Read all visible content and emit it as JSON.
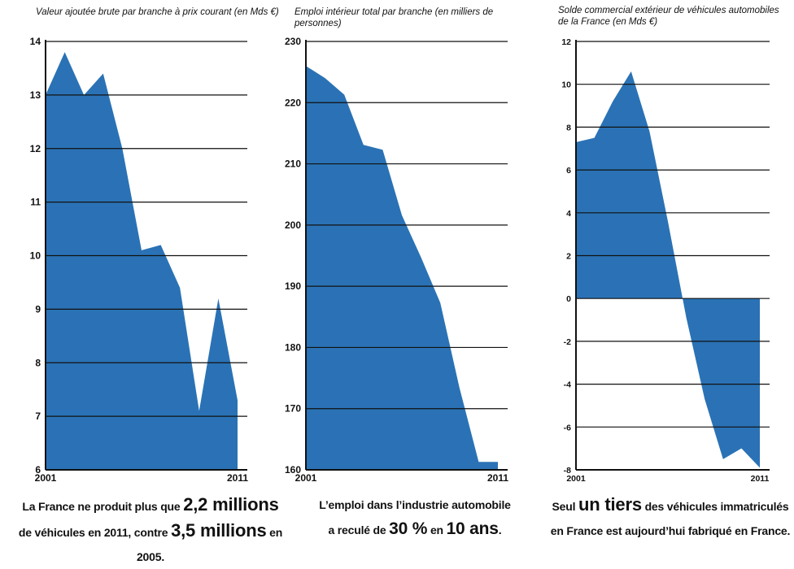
{
  "chart_data": [
    {
      "type": "area",
      "title": "Valeur ajoutée brute par branche à prix courant (en Mds €)",
      "x": [
        2001,
        2002,
        2003,
        2004,
        2005,
        2006,
        2007,
        2008,
        2009,
        2010,
        2011
      ],
      "values": [
        13.0,
        13.8,
        13.0,
        13.4,
        12.0,
        10.1,
        10.2,
        9.4,
        7.1,
        9.2,
        7.3
      ],
      "ylim": [
        6,
        14
      ],
      "yticks": [
        "6",
        "7",
        "8",
        "9",
        "10",
        "11",
        "12",
        "13",
        "14"
      ],
      "xtick_labels": [
        "2001",
        "2011"
      ],
      "color": "#2a72b5",
      "grid": true
    },
    {
      "type": "area",
      "title": "Emploi intérieur total par branche (en milliers de personnes)",
      "x": [
        2001,
        2002,
        2003,
        2004,
        2005,
        2006,
        2007,
        2008,
        2009,
        2010,
        2011
      ],
      "values": [
        226,
        224,
        221.3,
        213.1,
        212.3,
        201.6,
        194.7,
        187.3,
        173.4,
        161.3,
        161.3
      ],
      "ylim": [
        160,
        230
      ],
      "yticks": [
        "160",
        "170",
        "180",
        "190",
        "200",
        "210",
        "220",
        "230"
      ],
      "xtick_labels": [
        "2001",
        "2011"
      ],
      "color": "#2a72b5",
      "grid": true
    },
    {
      "type": "area",
      "title": "Solde commercial extérieur de véhicules automobiles de la France (en Mds €)",
      "x": [
        2001,
        2002,
        2003,
        2004,
        2005,
        2006,
        2007,
        2008,
        2009,
        2010,
        2011
      ],
      "values": [
        7.3,
        7.5,
        9.2,
        10.6,
        7.8,
        3.6,
        -0.9,
        -4.7,
        -7.5,
        -7.0,
        -7.9
      ],
      "ylim": [
        -8,
        12
      ],
      "yticks": [
        "-8",
        "-6",
        "-4",
        "-2",
        "0",
        "2",
        "4",
        "6",
        "8",
        "10",
        "12"
      ],
      "xtick_labels": [
        "2001",
        "2011"
      ],
      "color": "#2a72b5",
      "grid": true
    }
  ],
  "captions": {
    "c1": {
      "a": "La France ne produit plus que ",
      "b": "2,2 millions",
      "c": "de véhicules en 2011, contre ",
      "d": "3,5 millions",
      "e": " en 2005."
    },
    "c2": {
      "a": "L’emploi dans l’industrie automobile",
      "b": "a reculé de ",
      "c": "30 %",
      "d": " en ",
      "e": "10 ans",
      "f": "."
    },
    "c3": {
      "a": "Seul ",
      "b": "un tiers",
      "c": " des véhicules immatriculés",
      "d": "en France est aujourd’hui fabriqué en France."
    }
  }
}
